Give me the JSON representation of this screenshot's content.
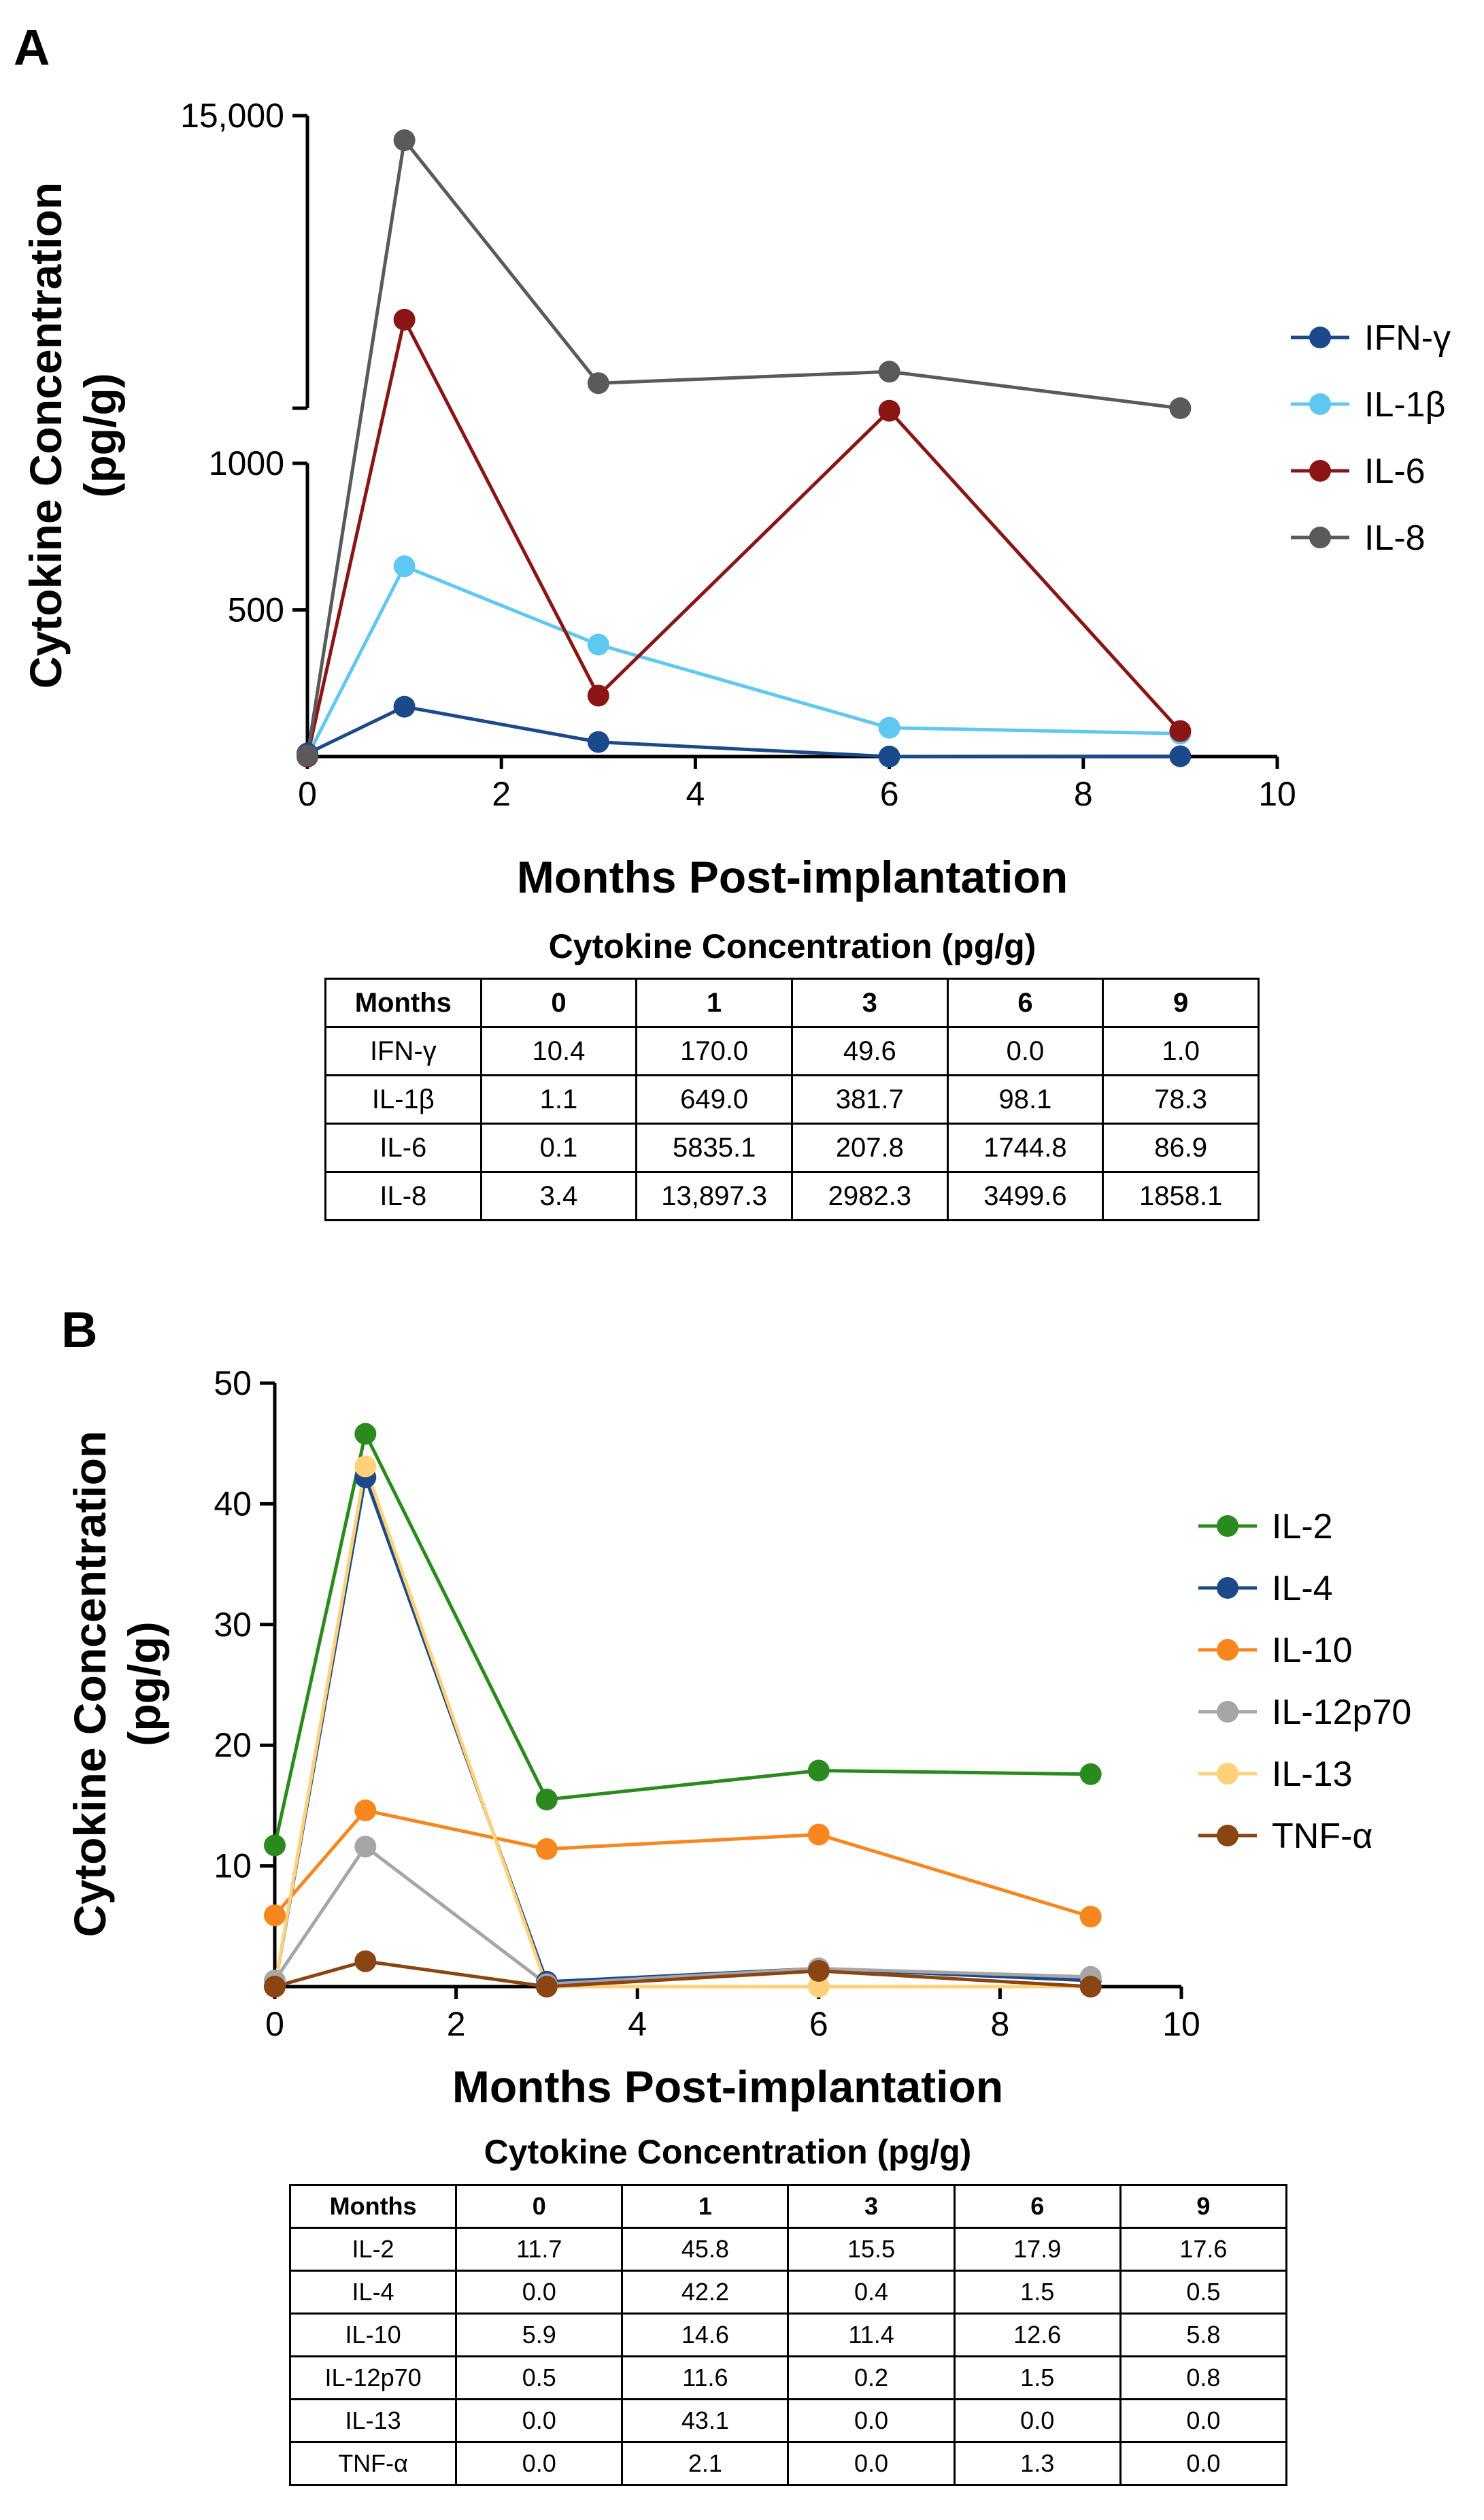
{
  "chart_data": [
    {
      "panel": "A",
      "type": "line",
      "xlabel": "Months Post-implantation",
      "ylabel": [
        "Cytokine Concentration",
        "(pg/g)"
      ],
      "xlim": [
        0,
        10
      ],
      "x_ticks": [
        "0",
        "2",
        "4",
        "6",
        "8",
        "10"
      ],
      "ylim": [
        0,
        15000
      ],
      "y_axis_break": [
        1000,
        1858.1
      ],
      "y_ticks": [
        {
          "value": 500,
          "label": "500"
        },
        {
          "value": 1000,
          "label": "1000"
        },
        {
          "value": 15000,
          "label": "15,000"
        }
      ],
      "x": [
        0,
        1,
        3,
        6,
        9
      ],
      "legend_position": "right",
      "series": [
        {
          "name": "IFN-γ",
          "color": "#1b4a8a",
          "values": [
            10.4,
            170.0,
            49.6,
            0.0,
            1.0
          ]
        },
        {
          "name": "IL-1β",
          "color": "#5fc8f0",
          "values": [
            1.1,
            649.0,
            381.7,
            98.1,
            78.3
          ]
        },
        {
          "name": "IL-6",
          "color": "#8b1414",
          "values": [
            0.1,
            5835.1,
            207.8,
            1744.8,
            86.9
          ]
        },
        {
          "name": "IL-8",
          "color": "#5a5a5a",
          "values": [
            3.4,
            13897.3,
            2982.3,
            3499.6,
            1858.1
          ]
        }
      ],
      "table": {
        "title": "Cytokine Concentration (pg/g)",
        "header": [
          "Months",
          "0",
          "1",
          "3",
          "6",
          "9"
        ],
        "rows": [
          [
            "IFN-γ",
            "10.4",
            "170.0",
            "49.6",
            "0.0",
            "1.0"
          ],
          [
            "IL-1β",
            "1.1",
            "649.0",
            "381.7",
            "98.1",
            "78.3"
          ],
          [
            "IL-6",
            "0.1",
            "5835.1",
            "207.8",
            "1744.8",
            "86.9"
          ],
          [
            "IL-8",
            "3.4",
            "13,897.3",
            "2982.3",
            "3499.6",
            "1858.1"
          ]
        ]
      }
    },
    {
      "panel": "B",
      "type": "line",
      "xlabel": "Months Post-implantation",
      "ylabel": [
        "Cytokine Concentration",
        "(pg/g)"
      ],
      "xlim": [
        0,
        10
      ],
      "x_ticks": [
        "0",
        "2",
        "4",
        "6",
        "8",
        "10"
      ],
      "ylim": [
        0,
        50
      ],
      "y_ticks": [
        {
          "value": 10,
          "label": "10"
        },
        {
          "value": 20,
          "label": "20"
        },
        {
          "value": 30,
          "label": "30"
        },
        {
          "value": 40,
          "label": "40"
        },
        {
          "value": 50,
          "label": "50"
        }
      ],
      "x": [
        0,
        1,
        3,
        6,
        9
      ],
      "legend_position": "right",
      "series": [
        {
          "name": "IL-2",
          "color": "#2a8a1e",
          "values": [
            11.7,
            45.8,
            15.5,
            17.9,
            17.6
          ]
        },
        {
          "name": "IL-4",
          "color": "#1b4a8a",
          "values": [
            0.0,
            42.2,
            0.4,
            1.5,
            0.5
          ]
        },
        {
          "name": "IL-10",
          "color": "#f7861f",
          "values": [
            5.9,
            14.6,
            11.4,
            12.6,
            5.8
          ]
        },
        {
          "name": "IL-12p70",
          "color": "#a6a6a6",
          "values": [
            0.5,
            11.6,
            0.2,
            1.5,
            0.8
          ]
        },
        {
          "name": "IL-13",
          "color": "#ffd27a",
          "values": [
            0.0,
            43.1,
            0.0,
            0.0,
            0.0
          ]
        },
        {
          "name": "TNF-α",
          "color": "#8b4513",
          "values": [
            0.0,
            2.1,
            0.0,
            1.3,
            0.0
          ]
        }
      ],
      "table": {
        "title": "Cytokine Concentration (pg/g)",
        "header": [
          "Months",
          "0",
          "1",
          "3",
          "6",
          "9"
        ],
        "rows": [
          [
            "IL-2",
            "11.7",
            "45.8",
            "15.5",
            "17.9",
            "17.6"
          ],
          [
            "IL-4",
            "0.0",
            "42.2",
            "0.4",
            "1.5",
            "0.5"
          ],
          [
            "IL-10",
            "5.9",
            "14.6",
            "11.4",
            "12.6",
            "5.8"
          ],
          [
            "IL-12p70",
            "0.5",
            "11.6",
            "0.2",
            "1.5",
            "0.8"
          ],
          [
            "IL-13",
            "0.0",
            "43.1",
            "0.0",
            "0.0",
            "0.0"
          ],
          [
            "TNF-α",
            "0.0",
            "2.1",
            "0.0",
            "1.3",
            "0.0"
          ]
        ]
      }
    }
  ]
}
